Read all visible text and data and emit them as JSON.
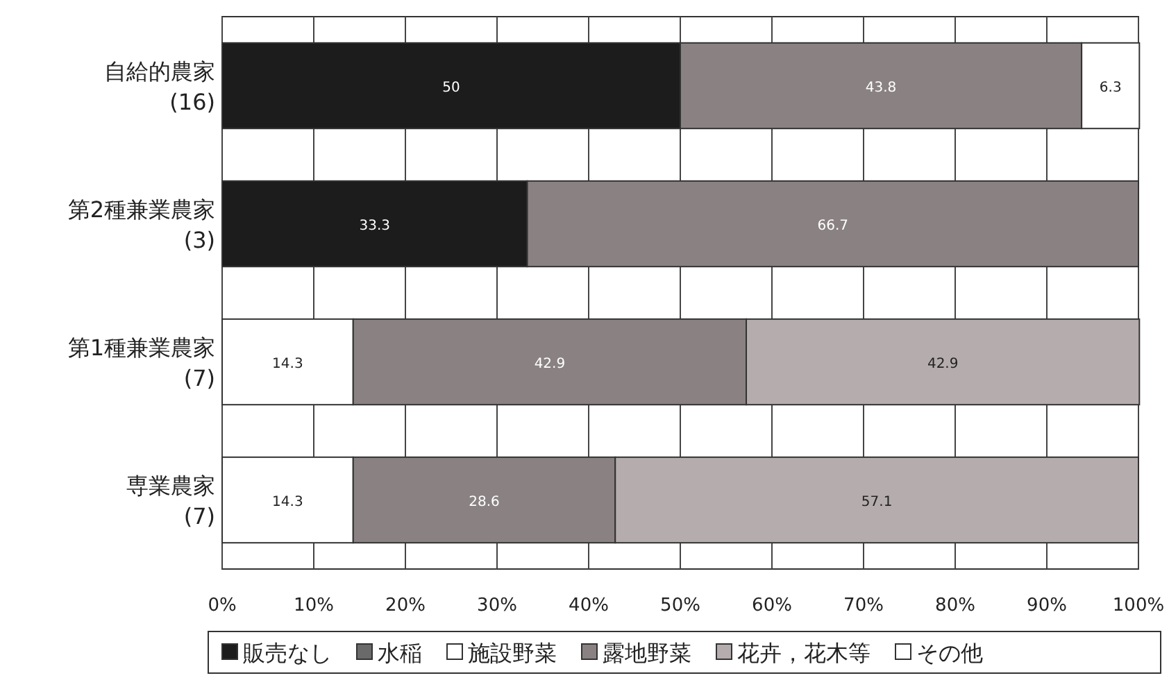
{
  "chart_data": {
    "type": "bar",
    "orientation": "horizontal",
    "stacked": true,
    "data_labels": true,
    "grid": "x",
    "legend": "bottom",
    "categories": [
      "自給的農家\n(16)",
      "第2種兼業農家\n(3)",
      "第1種兼業農家\n(7)",
      "専業農家\n(7)"
    ],
    "series": [
      {
        "name": "販売なし",
        "color": "#1c1c1c",
        "values": [
          50,
          33.3,
          null,
          null
        ]
      },
      {
        "name": "水稲",
        "color": "#6a6a6a",
        "values": [
          null,
          null,
          null,
          null
        ]
      },
      {
        "name": "施設野菜",
        "color": "#ffffff",
        "values": [
          null,
          null,
          14.3,
          14.3
        ]
      },
      {
        "name": "露地野菜",
        "color": "#8a8282",
        "values": [
          43.8,
          66.7,
          42.9,
          28.6
        ]
      },
      {
        "name": "花卉，花木等",
        "color": "#b5adad",
        "values": [
          null,
          null,
          42.9,
          57.1
        ]
      },
      {
        "name": "その他",
        "color": "#ffffff",
        "values": [
          6.3,
          null,
          null,
          null
        ]
      }
    ],
    "xlim": [
      0,
      100
    ],
    "xticks": [
      {
        "value": 0,
        "label": "0%"
      },
      {
        "value": 10,
        "label": "10%"
      },
      {
        "value": 20,
        "label": "20%"
      },
      {
        "value": 30,
        "label": "30%"
      },
      {
        "value": 40,
        "label": "40%"
      },
      {
        "value": 50,
        "label": "50%"
      },
      {
        "value": 60,
        "label": "60%"
      },
      {
        "value": 70,
        "label": "70%"
      },
      {
        "value": 80,
        "label": "80%"
      },
      {
        "value": 90,
        "label": "90%"
      },
      {
        "value": 100,
        "label": "100%"
      }
    ]
  }
}
